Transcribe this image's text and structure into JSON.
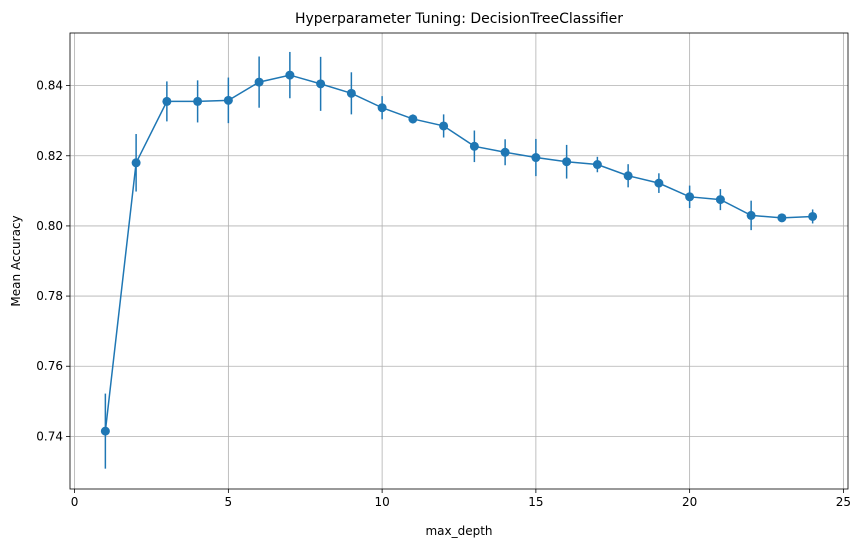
{
  "chart_data": {
    "type": "line",
    "title": "Hyperparameter Tuning: DecisionTreeClassifier",
    "xlabel": "max_depth",
    "ylabel": "Mean Accuracy",
    "xlim": [
      0,
      25
    ],
    "ylim": [
      0.725,
      0.855
    ],
    "xticks": [
      0,
      5,
      10,
      15,
      20,
      25
    ],
    "yticks": [
      0.74,
      0.76,
      0.78,
      0.8,
      0.82,
      0.84
    ],
    "grid": true,
    "color": "#1f77b4",
    "series": [
      {
        "x": [
          1,
          2,
          3,
          4,
          5,
          6,
          7,
          8,
          9,
          10,
          11,
          12,
          13,
          14,
          15,
          16,
          17,
          18,
          19,
          20,
          21,
          22,
          23,
          24
        ],
        "values": [
          0.7415,
          0.818,
          0.8355,
          0.8355,
          0.8358,
          0.841,
          0.843,
          0.8405,
          0.8378,
          0.8337,
          0.8305,
          0.8285,
          0.8227,
          0.821,
          0.8195,
          0.8183,
          0.8175,
          0.8143,
          0.8122,
          0.8083,
          0.8075,
          0.803,
          0.8023,
          0.8027
        ],
        "err": [
          0.0107,
          0.0082,
          0.0057,
          0.006,
          0.0065,
          0.0073,
          0.0066,
          0.0077,
          0.006,
          0.0033,
          0.0013,
          0.0033,
          0.0045,
          0.0037,
          0.0053,
          0.0048,
          0.0022,
          0.0033,
          0.0028,
          0.0032,
          0.003,
          0.0042,
          0.001,
          0.002
        ]
      }
    ]
  }
}
